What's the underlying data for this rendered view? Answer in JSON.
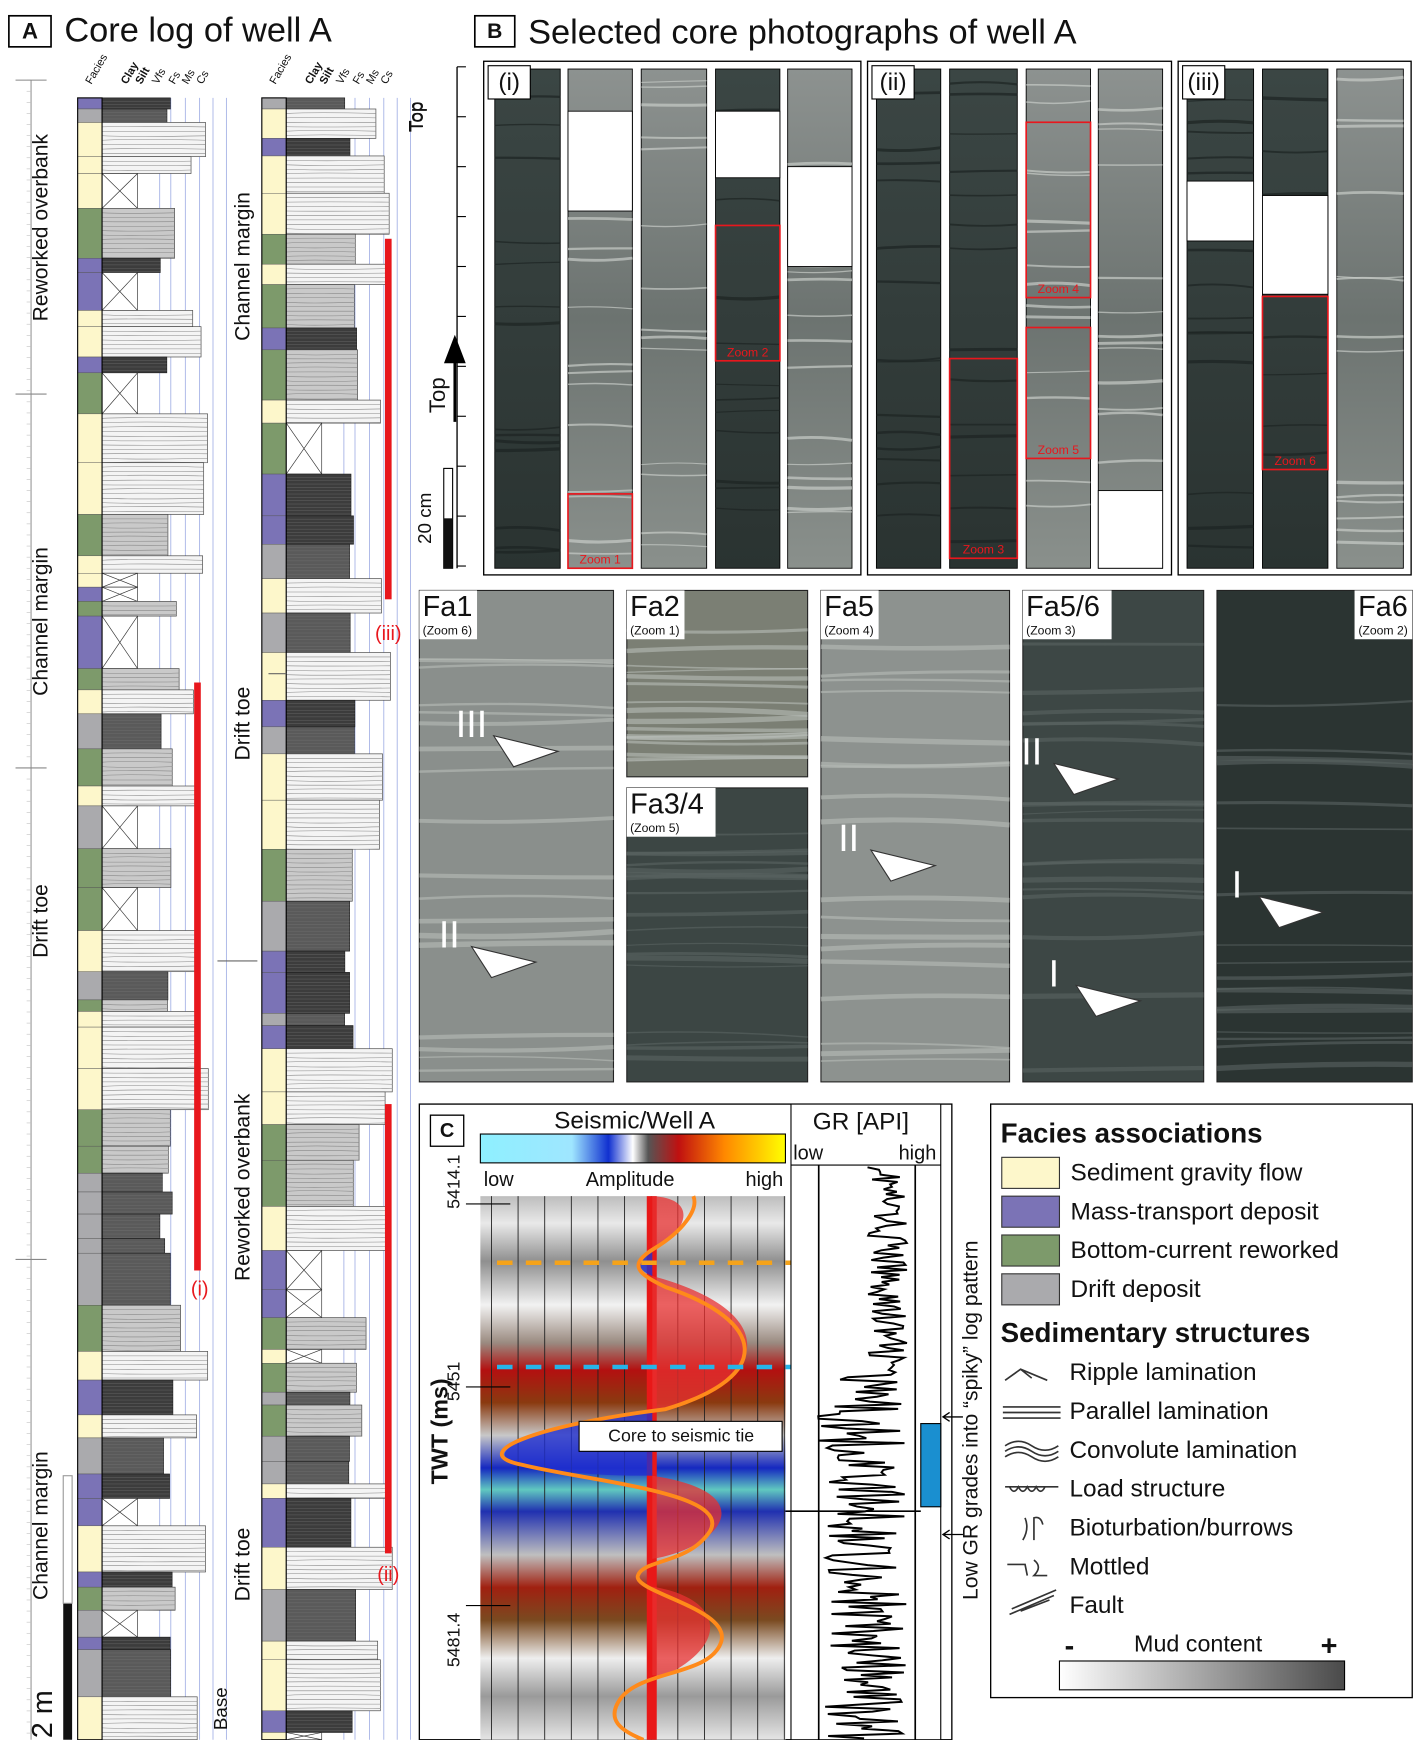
{
  "panel_a": {
    "label": "A",
    "title": "Core log of well A",
    "columns": [
      "Facies",
      "Clay",
      "Silt",
      "Vfs",
      "Fs",
      "Ms",
      "Cs"
    ],
    "left_log": [
      "Reworked overbank",
      "Channel margin",
      "Drift toe",
      "Channel margin"
    ],
    "right_log": [
      "Channel margin",
      "Drift toe",
      "Reworked overbank",
      "Drift toe"
    ],
    "core_labels": [
      "(i)",
      "(iii)",
      "(ii)"
    ],
    "top": "Top",
    "base": "Base",
    "scale": "2 m"
  },
  "panel_b": {
    "label": "B",
    "title": "Selected core photographs of well A",
    "groups": [
      "(i)",
      "(ii)",
      "(iii)"
    ],
    "top_labels": [
      "Top",
      "Top"
    ],
    "scale": "20 cm",
    "zooms": [
      "Zoom 1",
      "Zoom 2",
      "Zoom 3",
      "Zoom 4",
      "Zoom 5",
      "Zoom 6"
    ],
    "facies_panels": [
      {
        "name": "Fa1",
        "zoom": "(Zoom 6)",
        "arrows": [
          "III",
          "II"
        ]
      },
      {
        "name": "Fa2",
        "zoom": "(Zoom 1)",
        "arrows": []
      },
      {
        "name": "Fa3/4",
        "zoom": "(Zoom 5)",
        "arrows": []
      },
      {
        "name": "Fa5",
        "zoom": "(Zoom 4)",
        "arrows": [
          "II"
        ]
      },
      {
        "name": "Fa5/6",
        "zoom": "(Zoom 3)",
        "arrows": [
          "II",
          "I"
        ]
      },
      {
        "name": "Fa6",
        "zoom": "(Zoom 2)",
        "arrows": [
          "I"
        ]
      }
    ]
  },
  "panel_c": {
    "label": "C",
    "title": "Seismic/Well  A",
    "amplitude": [
      "low",
      "Amplitude",
      "high"
    ],
    "gr_title": "GR [API]",
    "gr_range": [
      "low",
      "high"
    ],
    "axis_label": "TWT (ms)",
    "twt_ticks": [
      5414.1,
      5451,
      5481.4
    ],
    "tie_label": "Core to seismic tie",
    "gr_note": "Low GR grades into “spiky” log pattern"
  },
  "legend": {
    "facies_title": "Facies associations",
    "facies": [
      {
        "name": "Sediment gravity flow",
        "color": "#fdf7cb"
      },
      {
        "name": "Mass-transport deposit",
        "color": "#7b73b6"
      },
      {
        "name": "Bottom-current reworked",
        "color": "#7d9a6b"
      },
      {
        "name": "Drift deposit",
        "color": "#aaaaad"
      }
    ],
    "structures_title": "Sedimentary structures",
    "structures": [
      "Ripple lamination",
      "Parallel lamination",
      "Convolute lamination",
      "Load structure",
      "Bioturbation/burrows",
      "Mottled",
      "Fault"
    ],
    "mud_title": "Mud content",
    "mud_ends": [
      "-",
      "+"
    ]
  }
}
